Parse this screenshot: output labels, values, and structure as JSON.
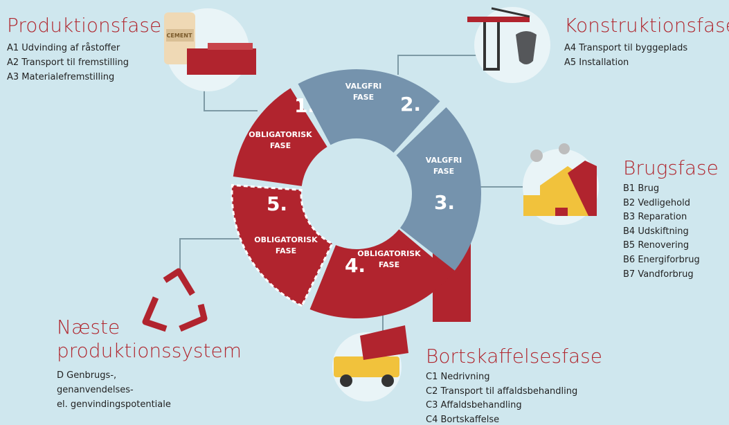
{
  "phases": [
    {
      "title": [
        "Produktionsfase"
      ],
      "items": [
        "A1 Udvinding af råstoffer",
        "A2 Transport til fremstilling",
        "A3 Materialefremstilling"
      ]
    },
    {
      "title": [
        "Konstruktionsfase"
      ],
      "items": [
        "A4 Transport til byggeplads",
        "A5 Installation"
      ]
    },
    {
      "title": [
        "Brugsfase"
      ],
      "items": [
        "B1 Brug",
        "B2 Vedligehold",
        "B3 Reparation",
        "B4 Udskiftning",
        "B5 Renovering",
        "B6 Energiforbrug",
        "B7 Vandforbrug"
      ]
    },
    {
      "title": [
        "Bortskaffelsesfase"
      ],
      "items": [
        "C1 Nedrivning",
        "C2 Transport til affaldsbehandling",
        "C3 Affaldsbehandling",
        "C4 Bortskaffelse"
      ]
    },
    {
      "title": [
        "Næste",
        "produktionssystem"
      ],
      "items": [
        "D Genbrugs-,",
        "genanvendelses-",
        "el. genvindingspotentiale"
      ]
    }
  ],
  "segments": [
    {
      "number": "1.",
      "label": [
        "OBLIGATORISK",
        "FASE"
      ]
    },
    {
      "number": "2.",
      "label": [
        "VALGFRI",
        "FASE"
      ]
    },
    {
      "number": "3.",
      "label": [
        "VALGFRI",
        "FASE"
      ]
    },
    {
      "number": "4.",
      "label": [
        "OBLIGATORISK",
        "FASE"
      ]
    },
    {
      "number": "5.",
      "label": [
        "OBLIGATORISK",
        "FASE"
      ]
    }
  ],
  "icon_label": "CEMENT"
}
